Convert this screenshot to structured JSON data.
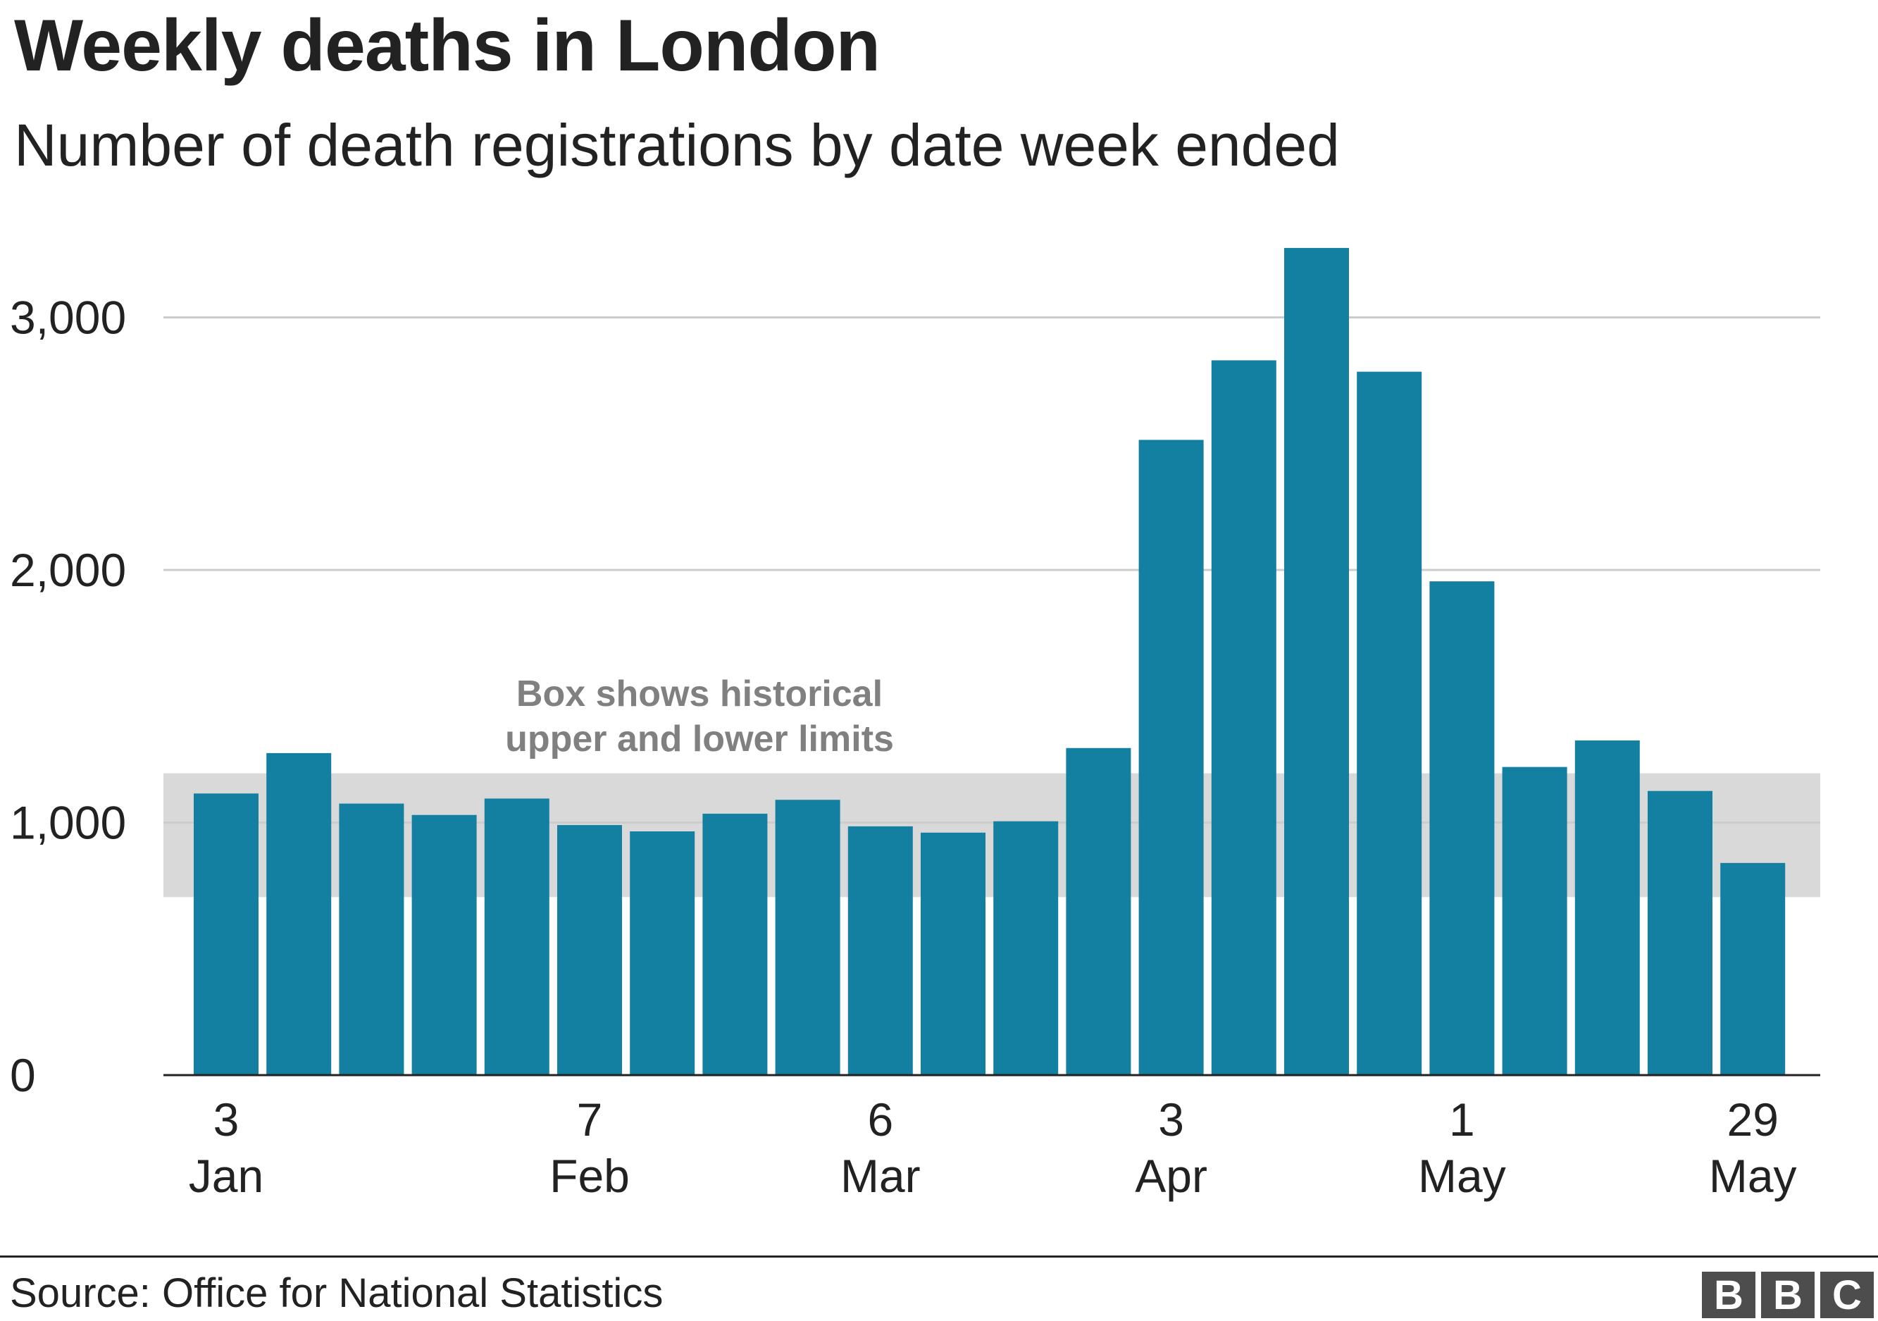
{
  "title": "Weekly deaths in London",
  "subtitle": "Number of death registrations by date week ended",
  "source": "Source: Office for National Statistics",
  "logo": {
    "letters": [
      "B",
      "B",
      "C"
    ],
    "color": "#4d4d4d"
  },
  "colors": {
    "bar": "#1380a1",
    "band": "#d9d9d9",
    "grid": "#cccccc",
    "axis": "#222222",
    "annotation": "#808080"
  },
  "chart_data": {
    "type": "bar",
    "title": "Weekly deaths in London",
    "subtitle": "Number of death registrations by date week ended",
    "x": [
      "3 Jan",
      "10 Jan",
      "17 Jan",
      "24 Jan",
      "31 Jan",
      "7 Feb",
      "14 Feb",
      "21 Feb",
      "28 Feb",
      "6 Mar",
      "13 Mar",
      "20 Mar",
      "27 Mar",
      "3 Apr",
      "10 Apr",
      "17 Apr",
      "24 Apr",
      "1 May",
      "8 May",
      "15 May",
      "22 May",
      "29 May"
    ],
    "values": [
      1115,
      1275,
      1075,
      1030,
      1095,
      990,
      965,
      1035,
      1090,
      985,
      960,
      1005,
      1295,
      2515,
      2830,
      3275,
      2785,
      1955,
      1220,
      1325,
      1125,
      840
    ],
    "ylim": [
      0,
      3300
    ],
    "yticks": [
      0,
      1000,
      2000,
      3000
    ],
    "ytick_labels": [
      "0",
      "1,000",
      "2,000",
      "3,000"
    ],
    "xtick_labels": [
      {
        "index": 0,
        "day": "3",
        "month": "Jan"
      },
      {
        "index": 5,
        "day": "7",
        "month": "Feb"
      },
      {
        "index": 9,
        "day": "6",
        "month": "Mar"
      },
      {
        "index": 13,
        "day": "3",
        "month": "Apr"
      },
      {
        "index": 17,
        "day": "1",
        "month": "May"
      },
      {
        "index": 21,
        "day": "29",
        "month": "May"
      }
    ],
    "band": {
      "lower": 705,
      "upper": 1195
    },
    "annotation": {
      "lines": [
        "Box shows historical",
        "upper and lower limits"
      ]
    },
    "grid": true,
    "legend": "none"
  }
}
